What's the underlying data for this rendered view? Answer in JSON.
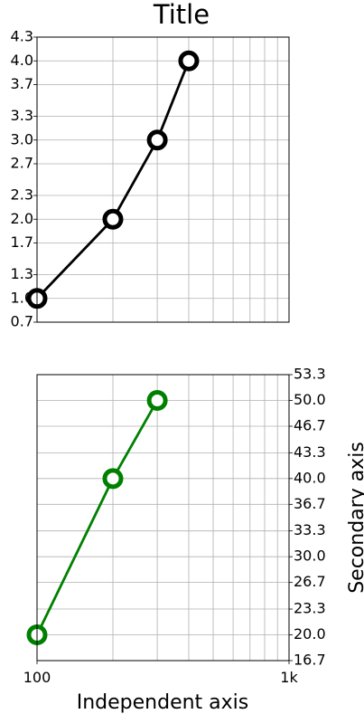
{
  "chart_data": [
    {
      "type": "line",
      "title": "Title",
      "xlabel": "",
      "ylabel": "",
      "xscale": "log",
      "xlim": [
        100,
        1000
      ],
      "ylim": [
        0.7,
        4.3
      ],
      "yticks": [
        "0.7",
        "1.0",
        "1.3",
        "1.7",
        "2.0",
        "2.3",
        "2.7",
        "3.0",
        "3.3",
        "3.7",
        "4.0",
        "4.3"
      ],
      "grid": true,
      "series": [
        {
          "x": [
            100,
            200,
            300,
            400
          ],
          "y": [
            1,
            2,
            3,
            4
          ],
          "color": "#000000",
          "marker": "circle-open"
        }
      ]
    },
    {
      "type": "line",
      "title": "",
      "xlabel": "Independent axis",
      "ylabel": "Secondary axis",
      "xscale": "log",
      "xlim": [
        100,
        1000
      ],
      "xticks": [
        "100",
        "1k"
      ],
      "ylim": [
        16.7,
        53.3
      ],
      "yaxis_side": "right",
      "yticks": [
        "16.7",
        "20.0",
        "23.3",
        "26.7",
        "30.0",
        "33.3",
        "36.7",
        "40.0",
        "43.3",
        "46.7",
        "50.0",
        "53.3"
      ],
      "grid": true,
      "series": [
        {
          "x": [
            100,
            200,
            300
          ],
          "y": [
            20,
            40,
            50
          ],
          "color": "#008000",
          "marker": "circle-open"
        }
      ]
    }
  ]
}
